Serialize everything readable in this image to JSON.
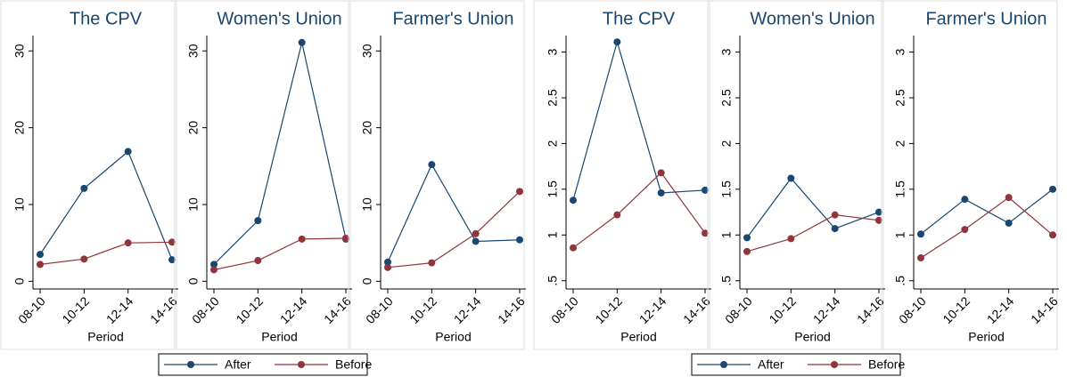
{
  "chart_data": [
    {
      "type": "line",
      "title": "The CPV",
      "x_label": "Period",
      "categories": [
        "08-10",
        "10-12",
        "12-14",
        "14-16"
      ],
      "series": [
        {
          "name": "After",
          "color": "#1a476f",
          "values": [
            3.5,
            12.1,
            16.9,
            2.8
          ]
        },
        {
          "name": "Before",
          "color": "#90353b",
          "values": [
            2.2,
            2.9,
            5.0,
            5.1
          ]
        }
      ],
      "ylim": [
        -1,
        32
      ],
      "yticks": [
        0,
        10,
        20,
        30
      ],
      "legend": "bottom"
    },
    {
      "type": "line",
      "title": "Women's Union",
      "x_label": "Period",
      "categories": [
        "08-10",
        "10-12",
        "12-14",
        "14-16"
      ],
      "series": [
        {
          "name": "After",
          "color": "#1a476f",
          "values": [
            2.2,
            7.9,
            31.1,
            5.5
          ]
        },
        {
          "name": "Before",
          "color": "#90353b",
          "values": [
            1.5,
            2.7,
            5.5,
            5.6
          ]
        }
      ],
      "ylim": [
        -1,
        32
      ],
      "yticks": [
        0,
        10,
        20,
        30
      ]
    },
    {
      "type": "line",
      "title": "Farmer's Union",
      "x_label": "Period",
      "categories": [
        "08-10",
        "10-12",
        "12-14",
        "14-16"
      ],
      "series": [
        {
          "name": "After",
          "color": "#1a476f",
          "values": [
            2.5,
            15.2,
            5.2,
            5.4
          ]
        },
        {
          "name": "Before",
          "color": "#90353b",
          "values": [
            1.8,
            2.4,
            6.2,
            11.7
          ]
        }
      ],
      "ylim": [
        -1,
        32
      ],
      "yticks": [
        0,
        10,
        20,
        30
      ]
    },
    {
      "type": "line",
      "title": "The CPV",
      "x_label": "Period",
      "categories": [
        "08-10",
        "10-12",
        "12-14",
        "14-16"
      ],
      "series": [
        {
          "name": "After",
          "color": "#1a476f",
          "values": [
            1.38,
            3.11,
            1.46,
            1.49
          ]
        },
        {
          "name": "Before",
          "color": "#90353b",
          "values": [
            0.86,
            1.22,
            1.68,
            1.02
          ]
        }
      ],
      "ylim": [
        0.41,
        3.18
      ],
      "yticks": [
        {
          "value": 0.5,
          "label": ".5"
        },
        1,
        1.5,
        2,
        2.5,
        3
      ],
      "legend": "bottom"
    },
    {
      "type": "line",
      "title": "Women's Union",
      "x_label": "Period",
      "categories": [
        "08-10",
        "10-12",
        "12-14",
        "14-16"
      ],
      "series": [
        {
          "name": "After",
          "color": "#1a476f",
          "values": [
            0.97,
            1.62,
            1.07,
            1.25
          ]
        },
        {
          "name": "Before",
          "color": "#90353b",
          "values": [
            0.82,
            0.96,
            1.22,
            1.16
          ]
        }
      ],
      "ylim": [
        0.41,
        3.18
      ],
      "yticks": [
        {
          "value": 0.5,
          "label": ".5"
        },
        1,
        1.5,
        2,
        2.5,
        3
      ]
    },
    {
      "type": "line",
      "title": "Farmer's Union",
      "x_label": "Period",
      "categories": [
        "08-10",
        "10-12",
        "12-14",
        "14-16"
      ],
      "series": [
        {
          "name": "After",
          "color": "#1a476f",
          "values": [
            1.01,
            1.39,
            1.13,
            1.5
          ]
        },
        {
          "name": "Before",
          "color": "#90353b",
          "values": [
            0.75,
            1.06,
            1.41,
            1.0
          ]
        }
      ],
      "ylim": [
        0.41,
        3.18
      ],
      "yticks": [
        {
          "value": 0.5,
          "label": ".5"
        },
        1,
        1.5,
        2,
        2.5,
        3
      ]
    }
  ]
}
